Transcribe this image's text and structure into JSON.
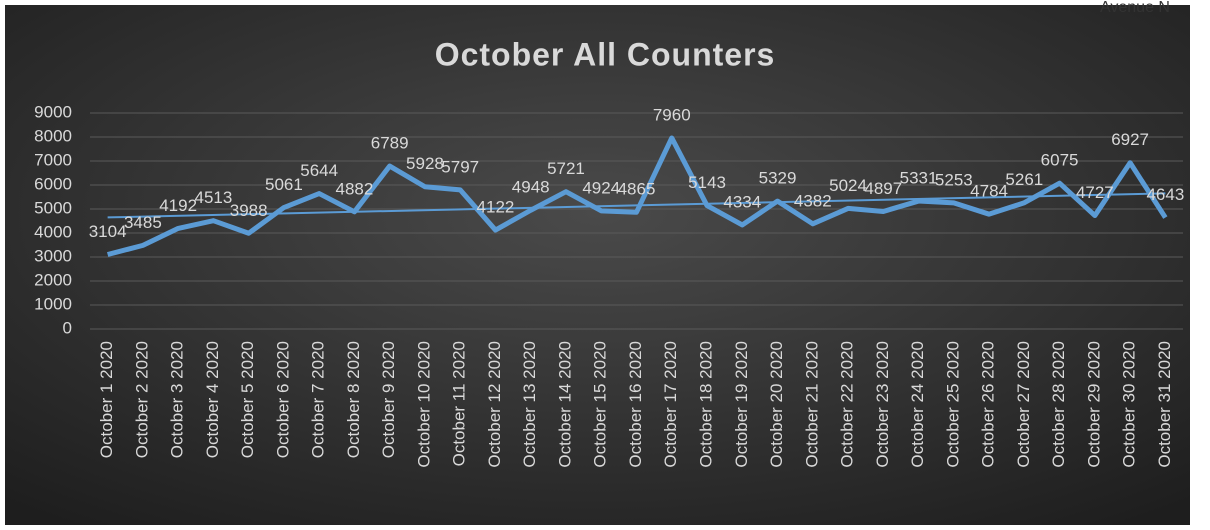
{
  "chart_data": {
    "type": "line",
    "title": "October All Counters",
    "annotation": "Avenue N",
    "categories": [
      "October 1 2020",
      "October 2 2020",
      "October 3 2020",
      "October 4 2020",
      "October 5 2020",
      "October 6 2020",
      "October 7 2020",
      "October 8 2020",
      "October 9 2020",
      "October 10 2020",
      "October 11 2020",
      "October 12 2020",
      "October 13 2020",
      "October 14 2020",
      "October 15 2020",
      "October 16 2020",
      "October 17 2020",
      "October 18 2020",
      "October 19 2020",
      "October 20 2020",
      "October 21 2020",
      "October 22 2020",
      "October 23 2020",
      "October 24 2020",
      "October 25 2020",
      "October 26 2020",
      "October 27 2020",
      "October 28 2020",
      "October 29 2020",
      "October 30 2020",
      "October 31 2020"
    ],
    "values": [
      3104,
      3485,
      4192,
      4513,
      3988,
      5061,
      5644,
      4882,
      6789,
      5928,
      5797,
      4122,
      4948,
      5721,
      4924,
      4865,
      7960,
      5143,
      4334,
      5329,
      4382,
      5024,
      4897,
      5331,
      5253,
      4784,
      5261,
      6075,
      4727,
      6927,
      4643
    ],
    "color": "#5b9bd5",
    "trendline": [
      4650,
      5650
    ],
    "ylim": [
      0,
      9000
    ],
    "yticks": [
      0,
      1000,
      2000,
      3000,
      4000,
      5000,
      6000,
      7000,
      8000,
      9000
    ],
    "grid": true
  }
}
